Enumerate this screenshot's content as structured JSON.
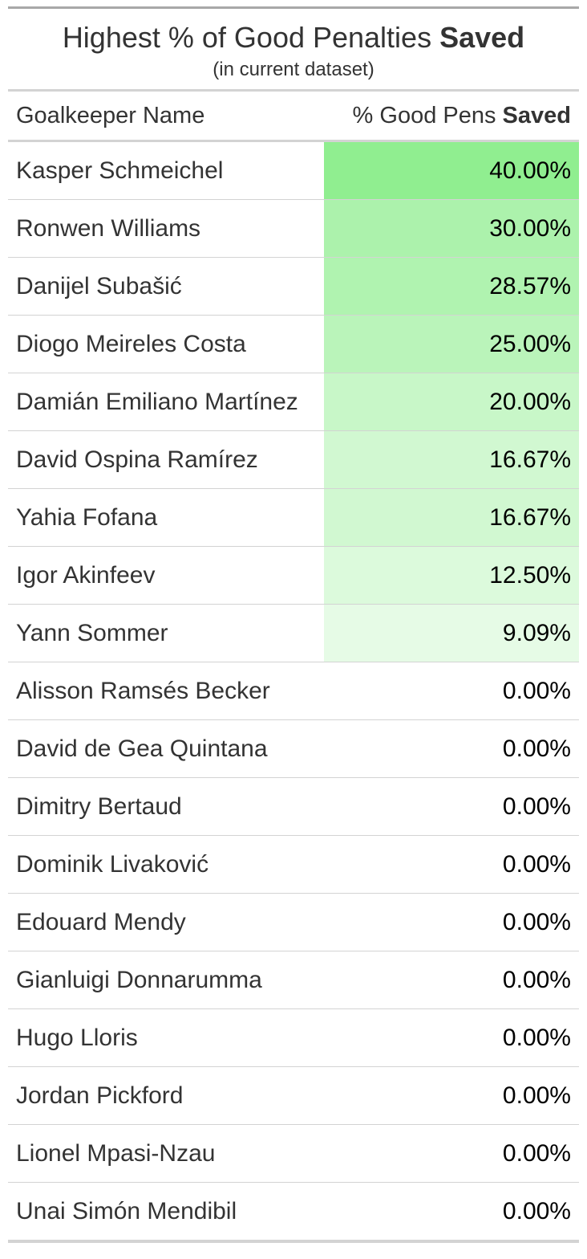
{
  "table": {
    "title_prefix": "Highest % of Good Penalties ",
    "title_bold": "Saved",
    "subtitle": "(in current dataset)",
    "col_name_label": "Goalkeeper Name",
    "col_value_label_prefix": "% Good Pens ",
    "col_value_label_bold": "Saved"
  },
  "colors": {
    "scale_max": "#90ee90",
    "scale_min": "#ffffff"
  },
  "chart_data": {
    "type": "table",
    "title": "Highest % of Good Penalties Saved",
    "subtitle": "(in current dataset)",
    "columns": [
      "Goalkeeper Name",
      "% Good Pens Saved"
    ],
    "rows": [
      {
        "name": "Kasper Schmeichel",
        "value": 40.0,
        "label": "40.00%"
      },
      {
        "name": "Ronwen Williams",
        "value": 30.0,
        "label": "30.00%"
      },
      {
        "name": "Danijel Subašić",
        "value": 28.57,
        "label": "28.57%"
      },
      {
        "name": "Diogo Meireles Costa",
        "value": 25.0,
        "label": "25.00%"
      },
      {
        "name": "Damián Emiliano Martínez",
        "value": 20.0,
        "label": "20.00%"
      },
      {
        "name": "David Ospina Ramírez",
        "value": 16.67,
        "label": "16.67%"
      },
      {
        "name": "Yahia Fofana",
        "value": 16.67,
        "label": "16.67%"
      },
      {
        "name": "Igor Akinfeev",
        "value": 12.5,
        "label": "12.50%"
      },
      {
        "name": "Yann Sommer",
        "value": 9.09,
        "label": "9.09%"
      },
      {
        "name": "Alisson Ramsés Becker",
        "value": 0.0,
        "label": "0.00%"
      },
      {
        "name": "David de Gea Quintana",
        "value": 0.0,
        "label": "0.00%"
      },
      {
        "name": "Dimitry Bertaud",
        "value": 0.0,
        "label": "0.00%"
      },
      {
        "name": "Dominik Livaković",
        "value": 0.0,
        "label": "0.00%"
      },
      {
        "name": "Edouard Mendy",
        "value": 0.0,
        "label": "0.00%"
      },
      {
        "name": "Gianluigi Donnarumma",
        "value": 0.0,
        "label": "0.00%"
      },
      {
        "name": "Hugo Lloris",
        "value": 0.0,
        "label": "0.00%"
      },
      {
        "name": "Jordan Pickford",
        "value": 0.0,
        "label": "0.00%"
      },
      {
        "name": "Lionel Mpasi-Nzau",
        "value": 0.0,
        "label": "0.00%"
      },
      {
        "name": "Unai Simón Mendibil",
        "value": 0.0,
        "label": "0.00%"
      }
    ]
  }
}
